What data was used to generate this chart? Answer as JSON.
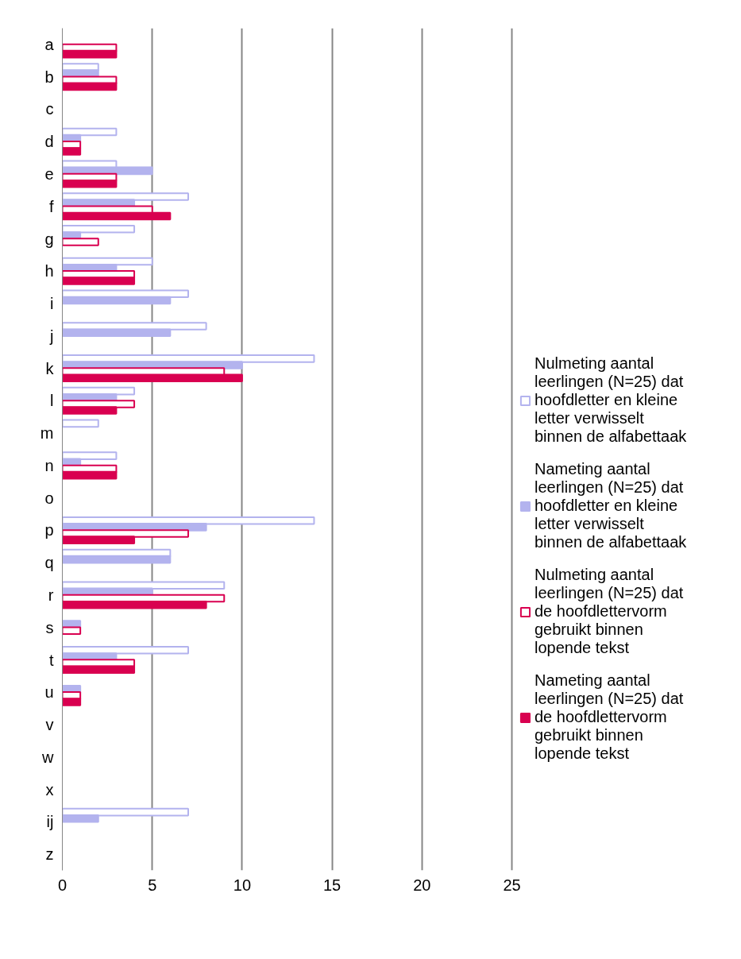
{
  "chart_data": {
    "type": "bar",
    "orientation": "horizontal",
    "categories": [
      "a",
      "b",
      "c",
      "d",
      "e",
      "f",
      "g",
      "h",
      "i",
      "j",
      "k",
      "l",
      "m",
      "n",
      "o",
      "p",
      "q",
      "r",
      "s",
      "t",
      "u",
      "v",
      "w",
      "x",
      "ij",
      "z"
    ],
    "series": [
      {
        "name": "Nulmeting aantal leerlingen (N=25) dat hoofdletter en kleine letter verwisselt binnen de alfabettaak",
        "color": "#b3b3ee",
        "values": [
          0,
          2,
          0,
          3,
          3,
          7,
          4,
          5,
          7,
          8,
          14,
          4,
          2,
          3,
          0,
          14,
          6,
          9,
          0,
          7,
          0,
          0,
          0,
          0,
          7,
          0
        ]
      },
      {
        "name": "Nameting aantal leerlingen (N=25) dat hoofdletter en kleine letter verwisselt binnen de alfabettaak",
        "color": "#b3b3ee",
        "values": [
          0,
          2,
          0,
          1,
          5,
          4,
          1,
          3,
          6,
          6,
          10,
          3,
          0,
          1,
          0,
          8,
          6,
          5,
          1,
          3,
          1,
          0,
          0,
          0,
          2,
          0
        ]
      },
      {
        "name": "Nulmeting aantal leerlingen (N=25) dat de hoofdlettervorm gebruikt binnen lopende tekst",
        "color": "#d90050",
        "values": [
          3,
          3,
          0,
          1,
          3,
          5,
          2,
          4,
          0,
          0,
          9,
          4,
          0,
          3,
          0,
          7,
          0,
          9,
          1,
          4,
          1,
          0,
          0,
          0,
          0,
          0
        ]
      },
      {
        "name": "Nameting aantal leerlingen (N=25) dat de hoofdlettervorm gebruikt binnen lopende tekst",
        "color": "#d90050",
        "values": [
          3,
          3,
          0,
          1,
          3,
          6,
          0,
          4,
          0,
          0,
          10,
          3,
          0,
          3,
          0,
          4,
          0,
          8,
          0,
          4,
          1,
          0,
          0,
          0,
          0,
          0
        ]
      }
    ],
    "xlim": [
      0,
      25
    ],
    "xticks": [
      0,
      5,
      10,
      15,
      20,
      25
    ],
    "grid": "x",
    "legend": "right"
  }
}
